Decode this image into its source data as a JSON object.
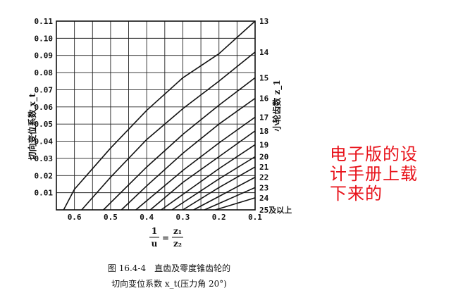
{
  "chart_data": {
    "type": "line",
    "ylabel": "切向变位系数 x_t",
    "right_axis_label": "小轮齿数 z_1",
    "xlabel_fraction": {
      "left_num": "1",
      "left_den": "u",
      "equals": "=",
      "right_num": "z₁",
      "right_den": "z₂"
    },
    "xlim": [
      0.65,
      0.1
    ],
    "ylim": [
      0,
      0.11
    ],
    "x_tick_labels": [
      "0.6",
      "0.5",
      "0.4",
      "0.3",
      "0.2",
      "0.1"
    ],
    "x_ticks": [
      0.6,
      0.5,
      0.4,
      0.3,
      0.2,
      0.1
    ],
    "y_tick_labels": [
      "0.01",
      "0.02",
      "0.03",
      "0.04",
      "0.05",
      "0.06",
      "0.07",
      "0.08",
      "0.09",
      "0.10",
      "0.11"
    ],
    "y_ticks": [
      0.01,
      0.02,
      0.03,
      0.04,
      0.05,
      0.06,
      0.07,
      0.08,
      0.09,
      0.1,
      0.11
    ],
    "grid": true,
    "series": [
      {
        "name": "13",
        "points": [
          [
            0.63,
            0.0
          ],
          [
            0.6,
            0.012
          ],
          [
            0.5,
            0.036
          ],
          [
            0.4,
            0.058
          ],
          [
            0.3,
            0.077
          ],
          [
            0.2,
            0.091
          ],
          [
            0.1,
            0.11
          ]
        ]
      },
      {
        "name": "14",
        "points": [
          [
            0.58,
            0.0
          ],
          [
            0.5,
            0.019
          ],
          [
            0.4,
            0.041
          ],
          [
            0.3,
            0.059
          ],
          [
            0.2,
            0.075
          ],
          [
            0.1,
            0.092
          ]
        ]
      },
      {
        "name": "15",
        "points": [
          [
            0.52,
            0.0
          ],
          [
            0.4,
            0.025
          ],
          [
            0.3,
            0.044
          ],
          [
            0.2,
            0.061
          ],
          [
            0.1,
            0.077
          ]
        ]
      },
      {
        "name": "16",
        "points": [
          [
            0.47,
            0.0
          ],
          [
            0.4,
            0.014
          ],
          [
            0.3,
            0.033
          ],
          [
            0.2,
            0.05
          ],
          [
            0.1,
            0.065
          ]
        ]
      },
      {
        "name": "17",
        "points": [
          [
            0.43,
            0.0
          ],
          [
            0.3,
            0.023
          ],
          [
            0.2,
            0.039
          ],
          [
            0.1,
            0.054
          ]
        ]
      },
      {
        "name": "18",
        "points": [
          [
            0.39,
            0.0
          ],
          [
            0.3,
            0.016
          ],
          [
            0.2,
            0.031
          ],
          [
            0.1,
            0.046
          ]
        ]
      },
      {
        "name": "19",
        "points": [
          [
            0.36,
            0.0
          ],
          [
            0.2,
            0.024
          ],
          [
            0.1,
            0.038
          ]
        ]
      },
      {
        "name": "20",
        "points": [
          [
            0.33,
            0.0
          ],
          [
            0.2,
            0.018
          ],
          [
            0.1,
            0.031
          ]
        ]
      },
      {
        "name": "21",
        "points": [
          [
            0.3,
            0.0
          ],
          [
            0.2,
            0.013
          ],
          [
            0.1,
            0.025
          ]
        ]
      },
      {
        "name": "22",
        "points": [
          [
            0.27,
            0.0
          ],
          [
            0.1,
            0.019
          ]
        ]
      },
      {
        "name": "23",
        "points": [
          [
            0.24,
            0.0
          ],
          [
            0.1,
            0.013
          ]
        ]
      },
      {
        "name": "24",
        "points": [
          [
            0.21,
            0.0
          ],
          [
            0.1,
            0.007
          ]
        ]
      },
      {
        "name": "25及以上",
        "points": [
          [
            0.1,
            0.0
          ]
        ]
      }
    ]
  },
  "caption": {
    "line1": "图 16.4-4　直齿及零度锥齿轮的",
    "line2": "切向变位系数 x_t(压力角 20°)"
  },
  "watermark": {
    "line1": "电子版的设",
    "line2": "计手册上载",
    "line3": "下来的",
    "color": "#e8131b"
  }
}
